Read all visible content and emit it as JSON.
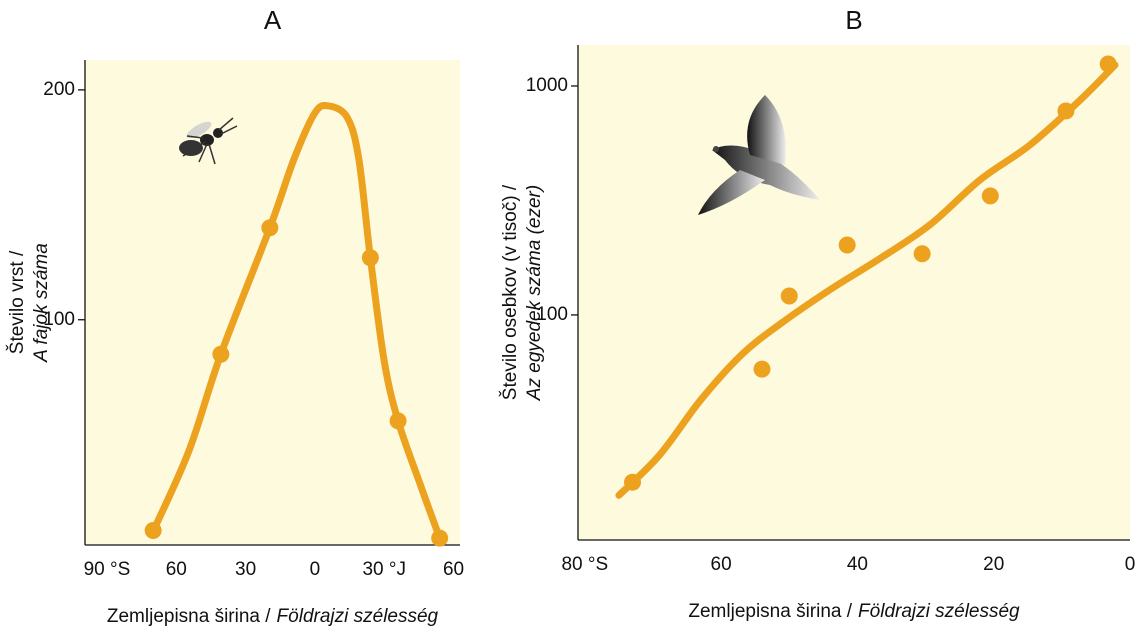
{
  "chart_data": [
    {
      "type": "line",
      "title": "A",
      "y_label": [
        "Število vrst /",
        "A fajok száma"
      ],
      "x_label": [
        "Zemljepisna širina /",
        "Földrajzi szélesség"
      ],
      "xlim": [
        -99.5,
        62.8
      ],
      "ylim": [
        2,
        213
      ],
      "xticks": [
        {
          "value": -90,
          "label": "90 °S"
        },
        {
          "value": -60,
          "label": "60"
        },
        {
          "value": -30,
          "label": "30"
        },
        0,
        {
          "value": 30,
          "label": "30 °J"
        },
        {
          "value": 60,
          "label": "60"
        }
      ],
      "yticks": [
        100,
        200
      ],
      "series": [
        {
          "mode": "line",
          "color": "#eda21f",
          "x": [
            -70,
            -54.5,
            -40.7,
            -19.5,
            -9,
            0,
            6,
            14,
            19,
            24,
            30,
            36,
            45,
            54
          ],
          "values": [
            8,
            43,
            85,
            140,
            170,
            190,
            193,
            188,
            170,
            127,
            82,
            56,
            30,
            5
          ]
        },
        {
          "mode": "markers",
          "color": "#eda21f",
          "x": [
            -70,
            -40.7,
            -19.5,
            24,
            36,
            54
          ],
          "values": [
            8.3,
            85,
            140,
            127,
            56,
            5
          ]
        }
      ]
    },
    {
      "type": "line",
      "title": "B",
      "y_label": [
        "Število osebkov (v tisoč) /",
        "Az egyedek száma (ezer)"
      ],
      "x_label": [
        "Zemljepisna širina /",
        "Földrajzi szélesség"
      ],
      "xlim": [
        81,
        0
      ],
      "ylim": [
        10.4,
        1510
      ],
      "log_y": true,
      "xticks": [
        {
          "value": 80,
          "label": "80 °S"
        },
        60,
        40,
        20,
        0
      ],
      "yticks": [
        100,
        1000
      ],
      "series": [
        {
          "mode": "line",
          "color": "#eda21f",
          "x": [
            75,
            69,
            63,
            57,
            51.4,
            44,
            37,
            29.4,
            22,
            14.7,
            7.3,
            2.2
          ],
          "values": [
            16.3,
            24.5,
            42.5,
            67,
            91,
            129,
            174,
            247,
            389,
            552,
            869,
            1235
          ]
        },
        {
          "mode": "markers",
          "color": "#eda21f",
          "x": [
            73,
            54,
            50,
            41.5,
            30.5,
            20.5,
            9.4,
            3.2
          ],
          "values": [
            18.6,
            58,
            121,
            202,
            185,
            331,
            778,
            1248
          ]
        }
      ]
    }
  ]
}
